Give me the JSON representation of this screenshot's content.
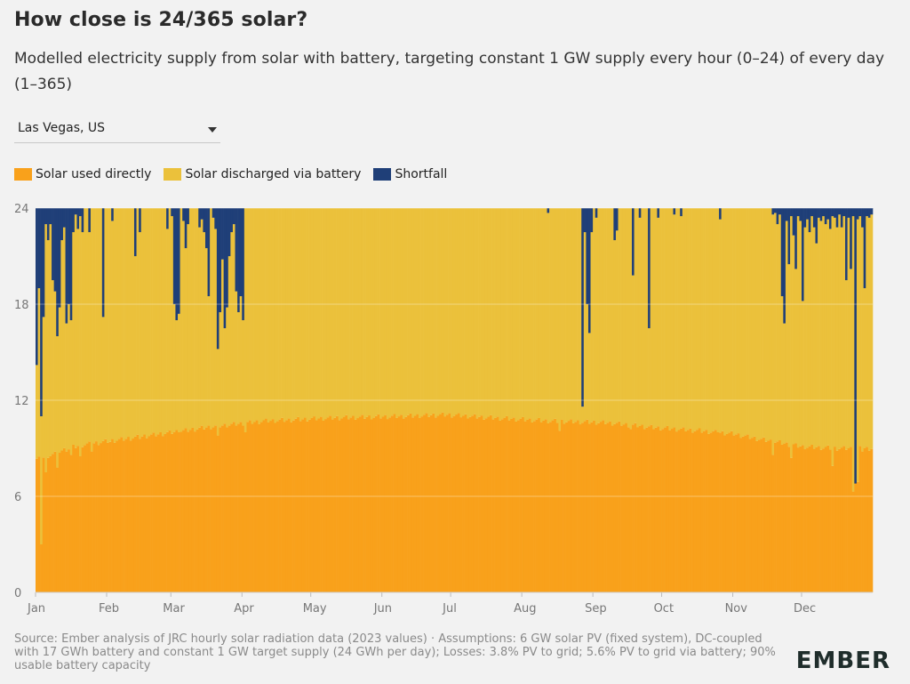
{
  "header": {
    "title": "How close is 24/365 solar?",
    "subtitle": "Modelled electricity supply from solar with battery, targeting constant 1 GW supply every hour (0–24) of every day (1–365)"
  },
  "controls": {
    "location_select": "Las Vegas, US"
  },
  "legend": [
    {
      "label": "Solar used directly",
      "color": "#f9a11b"
    },
    {
      "label": "Solar discharged via battery",
      "color": "#ebc13b"
    },
    {
      "label": "Shortfall",
      "color": "#1f3f78"
    }
  ],
  "footer": {
    "source": "Source: Ember analysis of JRC hourly solar radiation data (2023 values) · Assumptions: 6 GW solar PV (fixed system), DC-coupled with 17 GWh battery and constant 1 GW target supply (24 GWh per day); Losses: 3.8% PV to grid; 5.6% PV to grid via battery; 90% usable battery capacity",
    "logo": "EMBER"
  },
  "chart_data": {
    "type": "bar",
    "stacked": true,
    "xlabel": "",
    "ylabel": "",
    "ylim": [
      0,
      24
    ],
    "yticks": [
      0,
      6,
      12,
      18,
      24
    ],
    "days": 365,
    "month_labels": [
      "Jan",
      "Feb",
      "Mar",
      "Apr",
      "May",
      "Jun",
      "Jul",
      "Aug",
      "Sep",
      "Oct",
      "Nov",
      "Dec"
    ],
    "month_start_days": [
      1,
      32,
      60,
      91,
      121,
      152,
      182,
      213,
      244,
      274,
      305,
      335
    ],
    "direct_curve_knots": [
      [
        1,
        8.4
      ],
      [
        20,
        9.2
      ],
      [
        40,
        9.6
      ],
      [
        60,
        10.0
      ],
      [
        80,
        10.4
      ],
      [
        100,
        10.7
      ],
      [
        130,
        10.9
      ],
      [
        160,
        11.0
      ],
      [
        180,
        11.1
      ],
      [
        200,
        10.9
      ],
      [
        225,
        10.7
      ],
      [
        250,
        10.6
      ],
      [
        270,
        10.3
      ],
      [
        290,
        10.1
      ],
      [
        305,
        9.9
      ],
      [
        315,
        9.6
      ],
      [
        335,
        9.1
      ],
      [
        350,
        9.0
      ],
      [
        365,
        9.0
      ]
    ],
    "direct_dips": [
      [
        3,
        3.0
      ],
      [
        5,
        7.5
      ],
      [
        6,
        8.4
      ],
      [
        10,
        7.8
      ],
      [
        16,
        8.6
      ],
      [
        20,
        8.5
      ],
      [
        25,
        8.8
      ],
      [
        33,
        9.4
      ],
      [
        46,
        9.6
      ],
      [
        63,
        10.0
      ],
      [
        80,
        9.8
      ],
      [
        92,
        10.0
      ],
      [
        229,
        10.1
      ],
      [
        260,
        10.2
      ],
      [
        298,
        10.0
      ],
      [
        322,
        8.6
      ],
      [
        330,
        8.4
      ],
      [
        348,
        7.9
      ],
      [
        357,
        6.3
      ],
      [
        359,
        6.9
      ],
      [
        361,
        8.8
      ]
    ],
    "series": [
      {
        "name": "Solar used directly",
        "color": "#f9a11b"
      },
      {
        "name": "Solar discharged via battery",
        "color": "#ebc13b"
      },
      {
        "name": "Shortfall",
        "color": "#1f3f78",
        "values_by_day": [
          [
            1,
            9.8
          ],
          [
            2,
            5.0
          ],
          [
            3,
            13.0
          ],
          [
            4,
            6.8
          ],
          [
            5,
            1.0
          ],
          [
            6,
            2.0
          ],
          [
            7,
            1.0
          ],
          [
            8,
            4.5
          ],
          [
            9,
            5.2
          ],
          [
            10,
            8.0
          ],
          [
            11,
            6.2
          ],
          [
            12,
            2.0
          ],
          [
            13,
            1.2
          ],
          [
            14,
            7.2
          ],
          [
            15,
            6.0
          ],
          [
            16,
            7.0
          ],
          [
            17,
            1.5
          ],
          [
            18,
            0.4
          ],
          [
            19,
            1.3
          ],
          [
            20,
            0.5
          ],
          [
            21,
            1.5
          ],
          [
            24,
            1.5
          ],
          [
            30,
            6.8
          ],
          [
            34,
            0.8
          ],
          [
            44,
            3.0
          ],
          [
            46,
            1.5
          ],
          [
            58,
            1.3
          ],
          [
            60,
            0.5
          ],
          [
            61,
            6.0
          ],
          [
            62,
            7.0
          ],
          [
            63,
            6.6
          ],
          [
            65,
            0.8
          ],
          [
            66,
            2.5
          ],
          [
            67,
            1.0
          ],
          [
            72,
            1.2
          ],
          [
            73,
            0.7
          ],
          [
            74,
            1.5
          ],
          [
            75,
            2.5
          ],
          [
            76,
            5.5
          ],
          [
            78,
            0.6
          ],
          [
            79,
            1.3
          ],
          [
            80,
            8.8
          ],
          [
            81,
            6.5
          ],
          [
            82,
            3.2
          ],
          [
            83,
            7.5
          ],
          [
            84,
            6.2
          ],
          [
            85,
            3.0
          ],
          [
            86,
            1.5
          ],
          [
            87,
            1.0
          ],
          [
            88,
            5.2
          ],
          [
            89,
            6.5
          ],
          [
            90,
            5.5
          ],
          [
            91,
            7.0
          ],
          [
            224,
            0.3
          ],
          [
            239,
            12.4
          ],
          [
            240,
            1.5
          ],
          [
            241,
            6.0
          ],
          [
            242,
            7.8
          ],
          [
            243,
            1.5
          ],
          [
            245,
            0.6
          ],
          [
            253,
            2.0
          ],
          [
            254,
            1.4
          ],
          [
            261,
            4.2
          ],
          [
            264,
            0.6
          ],
          [
            268,
            7.5
          ],
          [
            272,
            0.6
          ],
          [
            279,
            0.4
          ],
          [
            282,
            0.5
          ],
          [
            299,
            0.7
          ],
          [
            322,
            0.4
          ],
          [
            323,
            0.3
          ],
          [
            324,
            1.0
          ],
          [
            325,
            0.4
          ],
          [
            326,
            5.5
          ],
          [
            327,
            7.2
          ],
          [
            328,
            0.8
          ],
          [
            329,
            3.5
          ],
          [
            330,
            0.5
          ],
          [
            331,
            1.7
          ],
          [
            332,
            3.8
          ],
          [
            333,
            0.5
          ],
          [
            334,
            0.8
          ],
          [
            335,
            5.8
          ],
          [
            336,
            1.2
          ],
          [
            337,
            0.7
          ],
          [
            338,
            1.5
          ],
          [
            339,
            0.5
          ],
          [
            340,
            1.2
          ],
          [
            341,
            2.2
          ],
          [
            342,
            0.6
          ],
          [
            343,
            0.8
          ],
          [
            344,
            0.5
          ],
          [
            345,
            1.0
          ],
          [
            346,
            0.7
          ],
          [
            347,
            1.3
          ],
          [
            348,
            0.5
          ],
          [
            349,
            0.6
          ],
          [
            350,
            1.2
          ],
          [
            351,
            0.4
          ],
          [
            352,
            1.2
          ],
          [
            353,
            0.5
          ],
          [
            354,
            4.5
          ],
          [
            355,
            0.6
          ],
          [
            356,
            3.8
          ],
          [
            357,
            0.5
          ],
          [
            358,
            17.2
          ],
          [
            359,
            0.7
          ],
          [
            360,
            0.5
          ],
          [
            361,
            1.2
          ],
          [
            362,
            5.0
          ],
          [
            363,
            0.5
          ],
          [
            364,
            0.6
          ],
          [
            365,
            0.4
          ]
        ]
      }
    ]
  }
}
